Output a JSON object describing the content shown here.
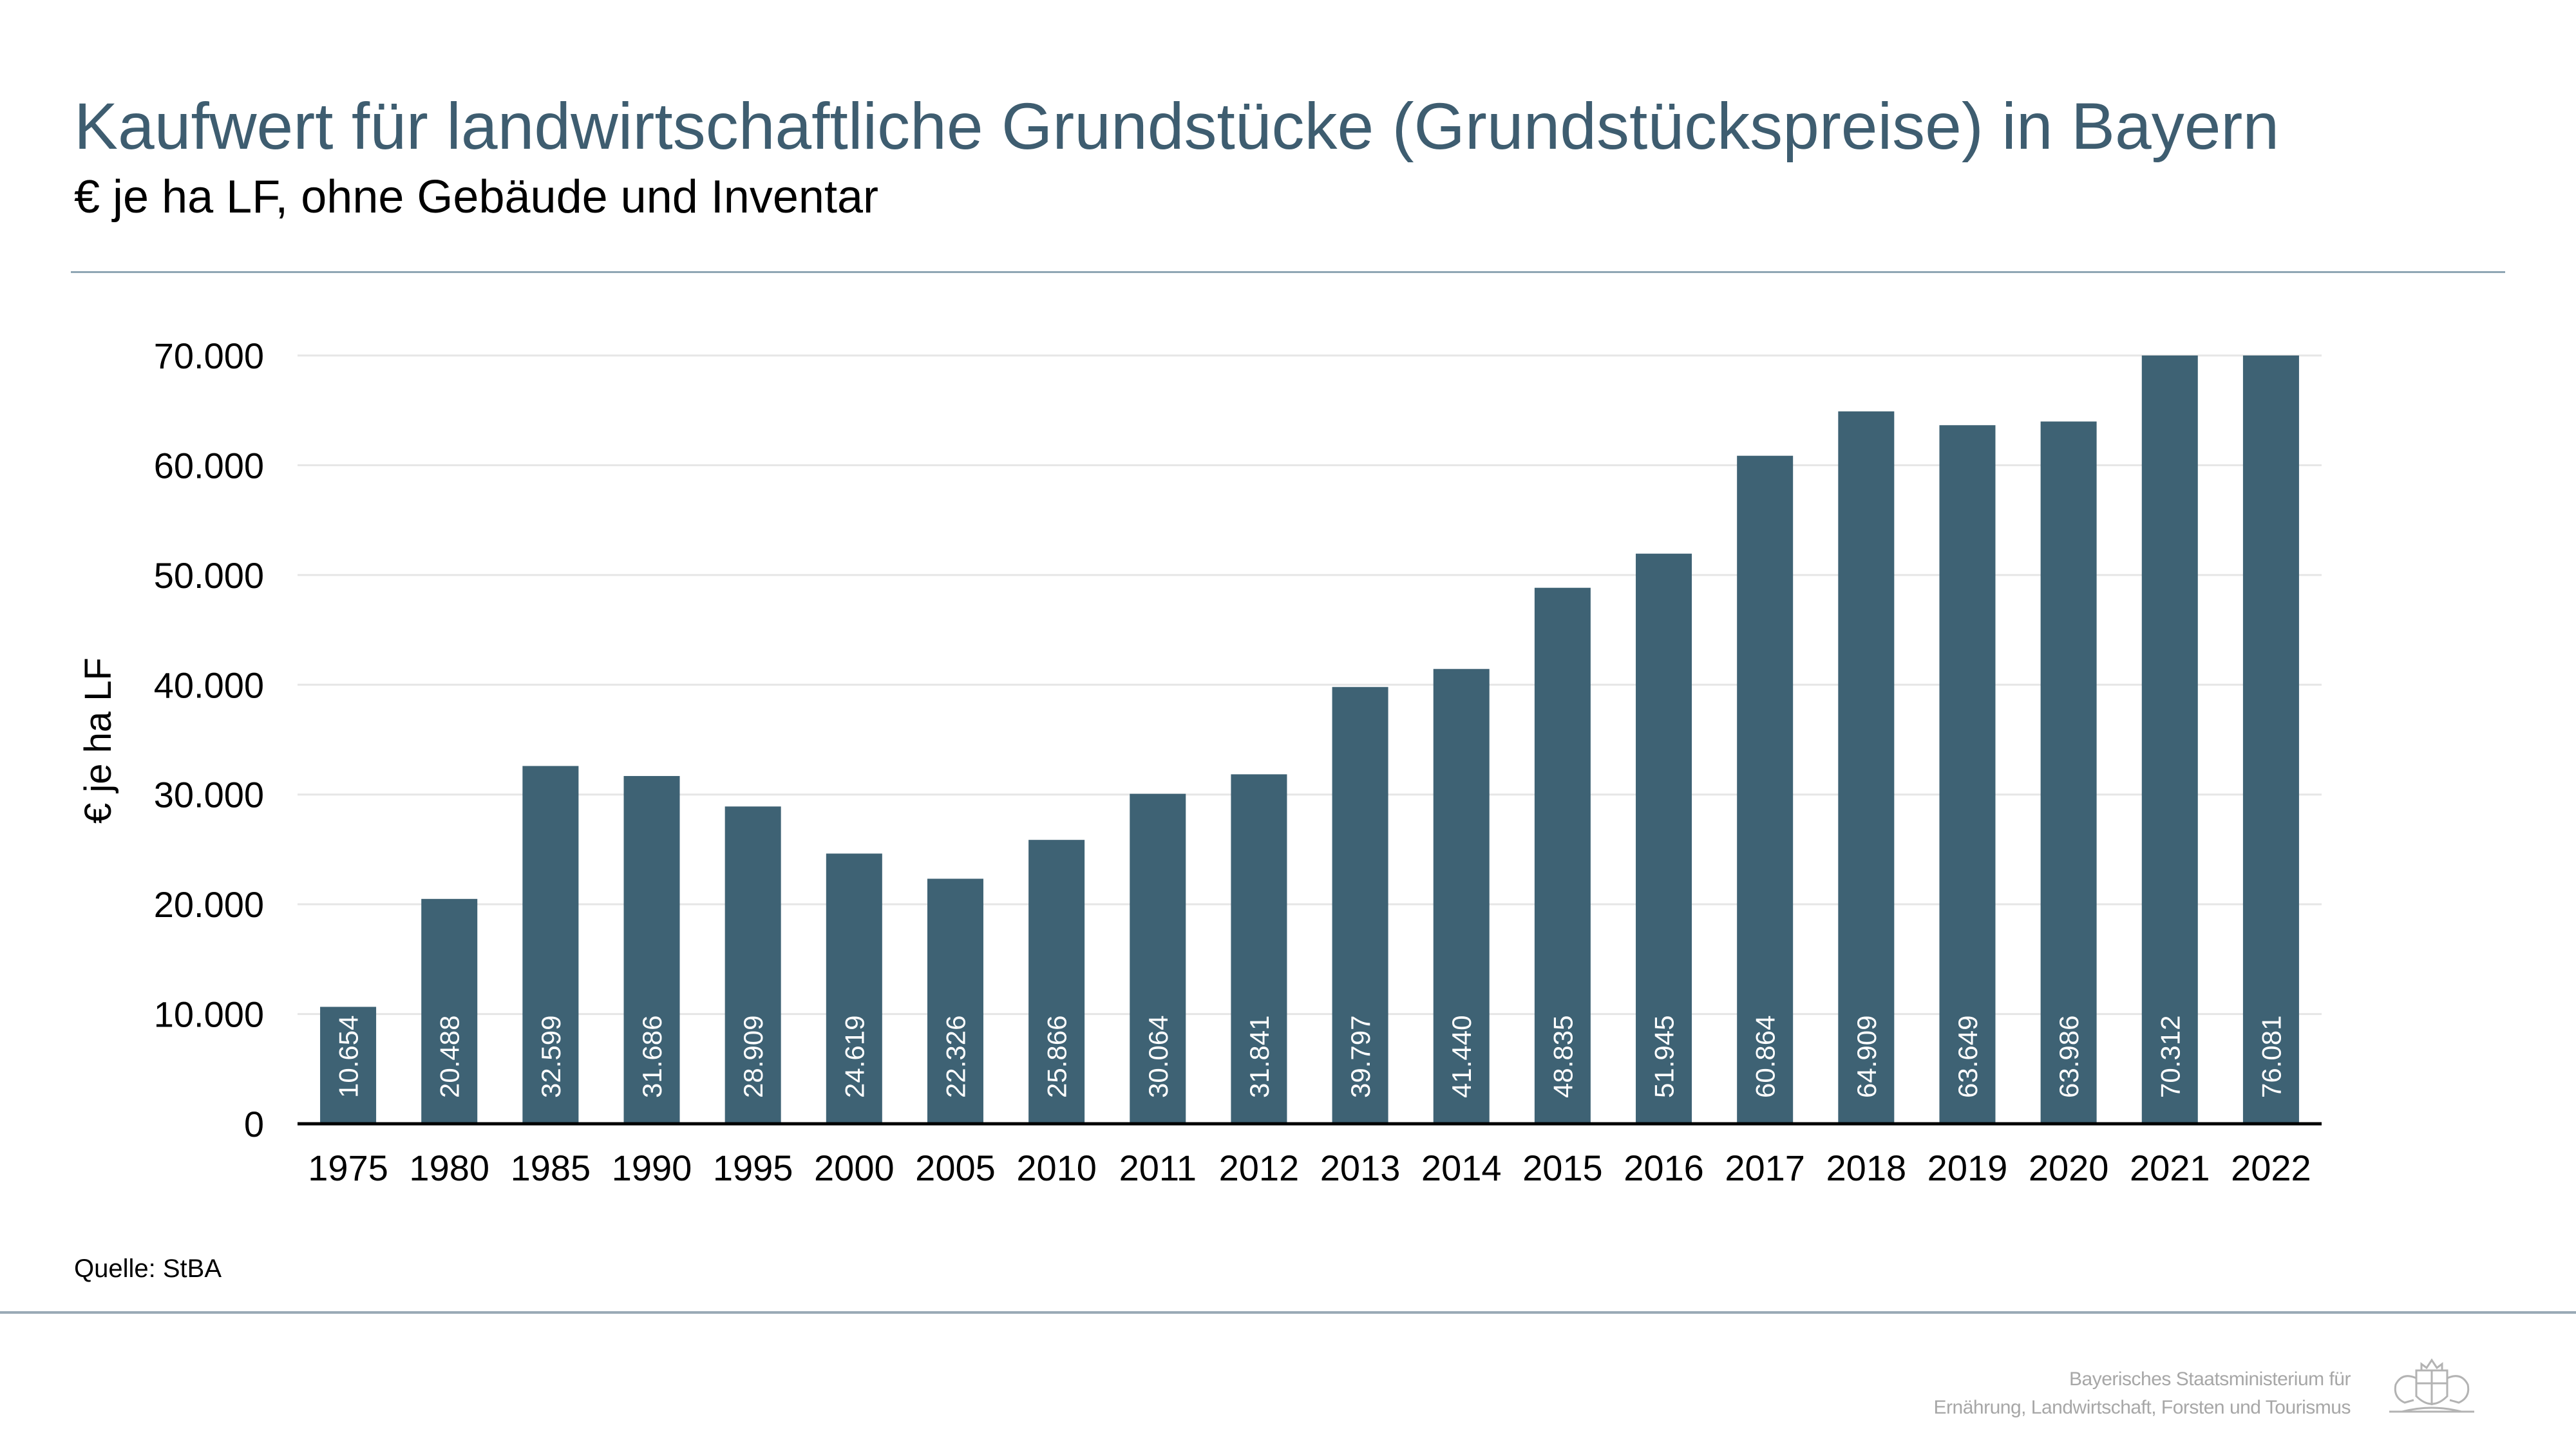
{
  "header": {
    "title": "Kaufwert für landwirtschaftliche Grundstücke (Grundstückspreise) in Bayern",
    "subtitle": "€ je ha LF, ohne Gebäude und Inventar"
  },
  "footer": {
    "source": "Quelle: StBA",
    "ministry_line1": "Bayerisches Staatsministerium für",
    "ministry_line2": "Ernährung, Landwirtschaft, Forsten und Tourismus",
    "logo_icon": "bavarian-coat-of-arms-icon"
  },
  "colors": {
    "title": "#3e5d70",
    "bar": "#3e6274",
    "bar_label": "#ffffff",
    "grid": "#e6e6e6",
    "rule": "#8fa6b4"
  },
  "chart_data": {
    "type": "bar",
    "title": "",
    "xlabel": "",
    "ylabel": "€ je ha LF",
    "ylim": [
      0,
      70000
    ],
    "yticks": [
      0,
      10000,
      20000,
      30000,
      40000,
      50000,
      60000,
      70000
    ],
    "ytick_labels": [
      "0",
      "10.000",
      "20.000",
      "30.000",
      "40.000",
      "50.000",
      "60.000",
      "70.000"
    ],
    "grid": true,
    "legend": "none",
    "categories": [
      "1975",
      "1980",
      "1985",
      "1990",
      "1995",
      "2000",
      "2005",
      "2010",
      "2011",
      "2012",
      "2013",
      "2014",
      "2015",
      "2016",
      "2017",
      "2018",
      "2019",
      "2020",
      "2021",
      "2022"
    ],
    "values": [
      10654,
      20488,
      32599,
      31686,
      28909,
      24619,
      22326,
      25866,
      30064,
      31841,
      39797,
      41440,
      48835,
      51945,
      60864,
      64909,
      63649,
      63986,
      70312,
      76081
    ],
    "value_labels": [
      "10.654",
      "20.488",
      "32.599",
      "31.686",
      "28.909",
      "24.619",
      "22.326",
      "25.866",
      "30.064",
      "31.841",
      "39.797",
      "41.440",
      "48.835",
      "51.945",
      "60.864",
      "64.909",
      "63.649",
      "63.986",
      "70.312",
      "76.081"
    ]
  }
}
